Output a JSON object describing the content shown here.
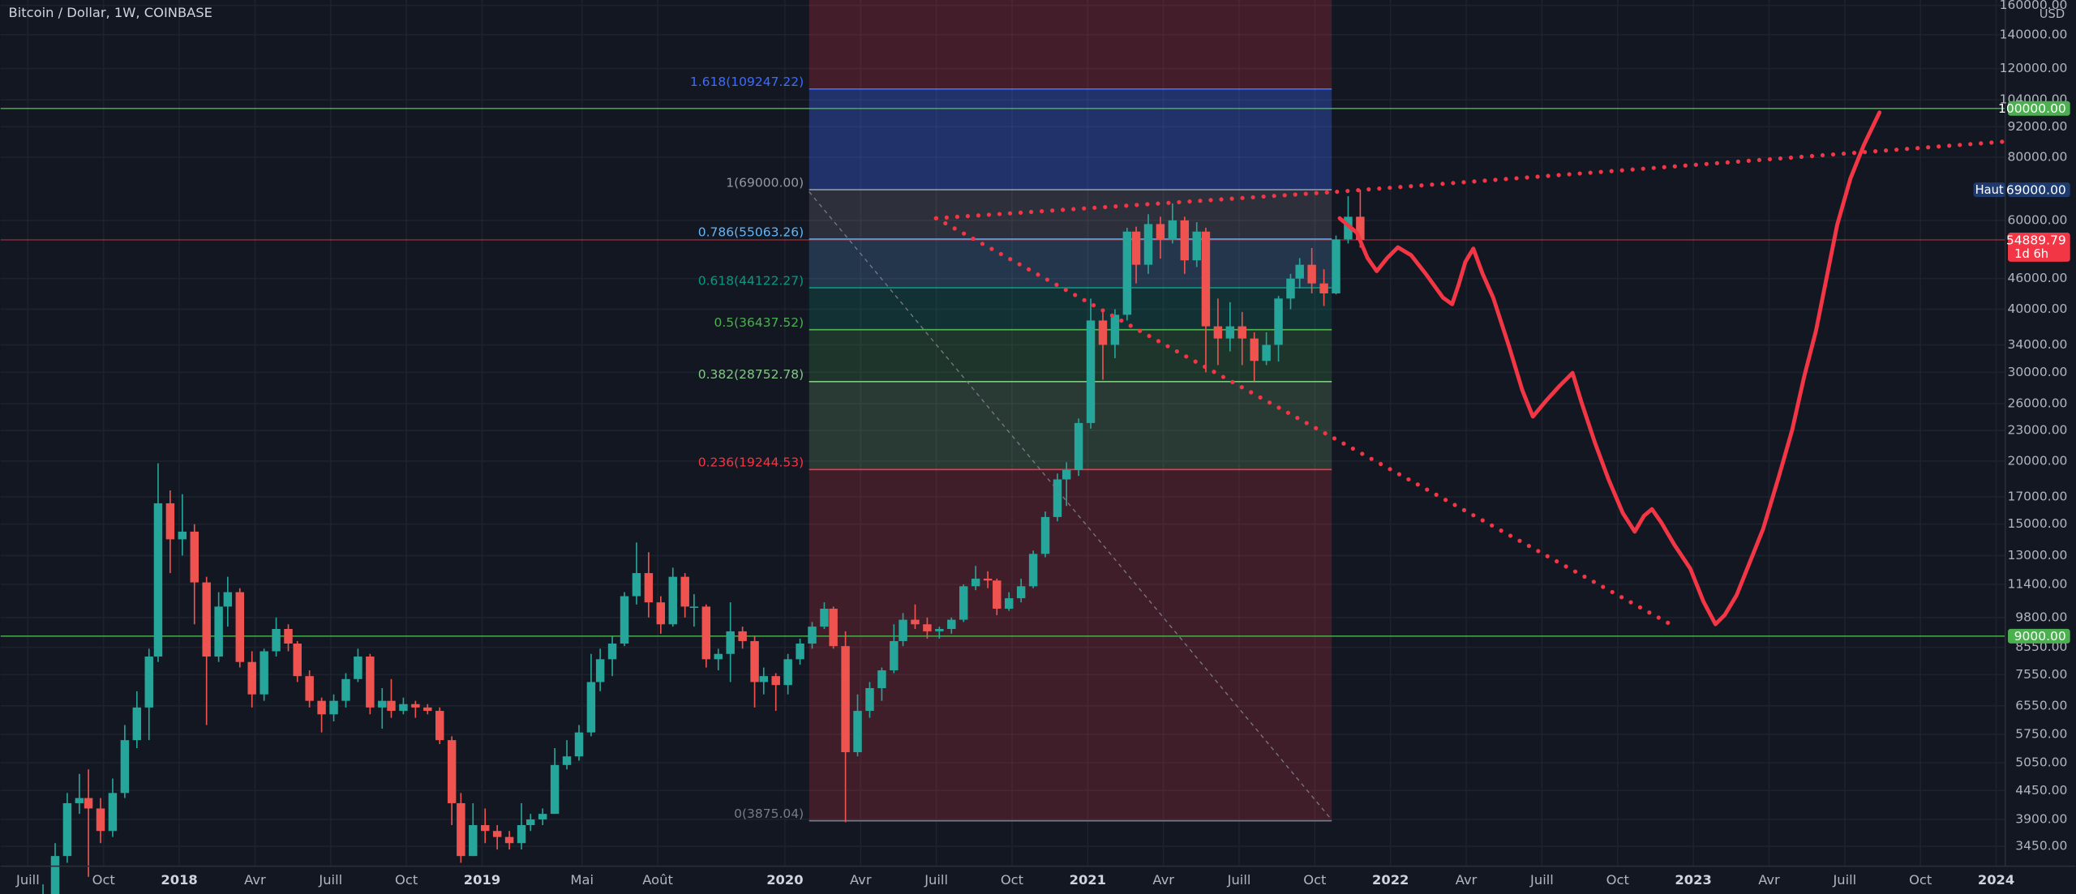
{
  "chart_data": {
    "type": "candlestick",
    "title": "Bitcoin / Dollar, 1W, COINBASE",
    "currency": "USD",
    "log_scale": true,
    "grid": true,
    "up_color": "#26a69a",
    "down_color": "#ef5350",
    "xlim": [
      2017.41,
      2024.03
    ],
    "ylim": [
      3150,
      164000
    ],
    "xticks": [
      {
        "value": 2017.5,
        "label": "Juill"
      },
      {
        "value": 2017.75,
        "label": "Oct"
      },
      2018,
      {
        "value": 2018.25,
        "label": "Avr"
      },
      {
        "value": 2018.5,
        "label": "Juill"
      },
      {
        "value": 2018.75,
        "label": "Oct"
      },
      2019,
      {
        "value": 2019.33,
        "label": "Mai"
      },
      {
        "value": 2019.58,
        "label": "Août"
      },
      2020,
      {
        "value": 2020.25,
        "label": "Avr"
      },
      {
        "value": 2020.5,
        "label": "Juill"
      },
      {
        "value": 2020.75,
        "label": "Oct"
      },
      2021,
      {
        "value": 2021.25,
        "label": "Avr"
      },
      {
        "value": 2021.5,
        "label": "Juill"
      },
      {
        "value": 2021.75,
        "label": "Oct"
      },
      2022,
      {
        "value": 2022.25,
        "label": "Avr"
      },
      {
        "value": 2022.5,
        "label": "Juill"
      },
      {
        "value": 2022.75,
        "label": "Oct"
      },
      2023,
      {
        "value": 2023.25,
        "label": "Avr"
      },
      {
        "value": 2023.5,
        "label": "Juill"
      },
      {
        "value": 2023.75,
        "label": "Oct"
      },
      2024
    ],
    "yticks": [
      {
        "value": 160000,
        "label": "160000.00"
      },
      {
        "value": 140000,
        "label": "140000.00"
      },
      {
        "value": 120000,
        "label": "120000.00"
      },
      {
        "value": 104000,
        "label": "104000.00"
      },
      {
        "value": 92000,
        "label": "92000.00"
      },
      {
        "value": 80000,
        "label": "80000.00"
      },
      {
        "value": 60000,
        "label": "60000.00"
      },
      {
        "value": 46000,
        "label": "46000.00"
      },
      {
        "value": 40000,
        "label": "40000.00"
      },
      {
        "value": 34000,
        "label": "34000.00"
      },
      {
        "value": 30000,
        "label": "30000.00"
      },
      {
        "value": 26000,
        "label": "26000.00"
      },
      {
        "value": 23000,
        "label": "23000.00"
      },
      {
        "value": 20000,
        "label": "20000.00"
      },
      {
        "value": 17000,
        "label": "17000.00"
      },
      {
        "value": 15000,
        "label": "15000.00"
      },
      {
        "value": 13000,
        "label": "13000.00"
      },
      {
        "value": 11400,
        "label": "11400.00"
      },
      {
        "value": 9800,
        "label": "9800.00"
      },
      {
        "value": 8550,
        "label": "8550.00"
      },
      {
        "value": 7550,
        "label": "7550.00"
      },
      {
        "value": 6550,
        "label": "6550.00"
      },
      {
        "value": 5750,
        "label": "5750.00"
      },
      {
        "value": 5050,
        "label": "5050.00"
      },
      {
        "value": 4450,
        "label": "4450.00"
      },
      {
        "value": 3900,
        "label": "3900.00"
      },
      {
        "value": 3450,
        "label": "3450.00"
      }
    ],
    "price_lines": [
      {
        "value": 100000,
        "label": "100000.00",
        "color": "#4caf50"
      },
      {
        "value": 9000,
        "label": "9000.00",
        "color": "#4caf50"
      },
      {
        "value": 69000,
        "label": "69000.00",
        "color": "#1e3a6e",
        "note": "Haut"
      },
      {
        "value": 54889.79,
        "label": "54889.79",
        "color": "#f23645",
        "note": "1d 6h"
      }
    ],
    "fib_levels": [
      {
        "value": 109247.22,
        "label": "1.618(109247.22)",
        "color": "#3d6cff"
      },
      {
        "value": 69000,
        "label": "1(69000.00)",
        "color": "#9598a1"
      },
      {
        "value": 55063.26,
        "label": "0.786(55063.26)",
        "color": "#64b5f6"
      },
      {
        "value": 44122.27,
        "label": "0.618(44122.27)",
        "color": "#089981"
      },
      {
        "value": 36437.52,
        "label": "0.5(36437.52)",
        "color": "#4caf50"
      },
      {
        "value": 28752.78,
        "label": "0.382(28752.78)",
        "color": "#81c784"
      },
      {
        "value": 19244.53,
        "label": "0.236(19244.53)",
        "color": "#f23645"
      },
      {
        "value": 3875.04,
        "label": "0(3875.04)",
        "color": "#787b86"
      }
    ],
    "x": [
      2017.55,
      2017.59,
      2017.63,
      2017.67,
      2017.7,
      2017.74,
      2017.78,
      2017.82,
      2017.86,
      2017.9,
      2017.93,
      2017.97,
      2018.01,
      2018.05,
      2018.09,
      2018.13,
      2018.16,
      2018.2,
      2018.24,
      2018.28,
      2018.32,
      2018.36,
      2018.39,
      2018.43,
      2018.47,
      2018.51,
      2018.55,
      2018.59,
      2018.63,
      2018.67,
      2018.7,
      2018.74,
      2018.78,
      2018.82,
      2018.86,
      2018.9,
      2018.93,
      2018.97,
      2019.01,
      2019.05,
      2019.09,
      2019.13,
      2019.16,
      2019.2,
      2019.24,
      2019.28,
      2019.32,
      2019.36,
      2019.39,
      2019.43,
      2019.47,
      2019.51,
      2019.55,
      2019.59,
      2019.63,
      2019.67,
      2019.7,
      2019.74,
      2019.78,
      2019.82,
      2019.86,
      2019.9,
      2019.93,
      2019.97,
      2020.01,
      2020.05,
      2020.09,
      2020.13,
      2020.16,
      2020.2,
      2020.24,
      2020.28,
      2020.32,
      2020.36,
      2020.39,
      2020.43,
      2020.47,
      2020.51,
      2020.55,
      2020.59,
      2020.63,
      2020.67,
      2020.7,
      2020.74,
      2020.78,
      2020.82,
      2020.86,
      2020.9,
      2020.93,
      2020.97,
      2021.01,
      2021.05,
      2021.09,
      2021.13,
      2021.16,
      2021.2,
      2021.24,
      2021.28,
      2021.32,
      2021.36,
      2021.39,
      2021.43,
      2021.47,
      2021.51,
      2021.55,
      2021.59,
      2021.63,
      2021.67,
      2021.7,
      2021.74,
      2021.78,
      2021.82,
      2021.86,
      2021.9
    ],
    "ohlc": [
      [
        2500,
        2900,
        2400,
        2700
      ],
      [
        2700,
        3500,
        2600,
        3300
      ],
      [
        3300,
        4400,
        3200,
        4200
      ],
      [
        4200,
        4800,
        4000,
        4300
      ],
      [
        4300,
        4900,
        3000,
        4100
      ],
      [
        4100,
        4300,
        3500,
        3700
      ],
      [
        3700,
        4700,
        3600,
        4400
      ],
      [
        4400,
        6000,
        4300,
        5600
      ],
      [
        5600,
        7000,
        5400,
        6500
      ],
      [
        6500,
        8500,
        5600,
        8200
      ],
      [
        8200,
        19800,
        8000,
        16500
      ],
      [
        16500,
        17500,
        12000,
        14000
      ],
      [
        14000,
        17200,
        13000,
        14500
      ],
      [
        14500,
        15000,
        9500,
        11500
      ],
      [
        11500,
        11800,
        6000,
        8200
      ],
      [
        8200,
        11000,
        8000,
        10300
      ],
      [
        10300,
        11800,
        9400,
        11000
      ],
      [
        11000,
        11200,
        7800,
        8000
      ],
      [
        8000,
        8400,
        6500,
        6900
      ],
      [
        6900,
        8500,
        6700,
        8400
      ],
      [
        8400,
        9800,
        8200,
        9300
      ],
      [
        9300,
        9500,
        8400,
        8700
      ],
      [
        8700,
        8800,
        7300,
        7500
      ],
      [
        7500,
        7700,
        6500,
        6700
      ],
      [
        6700,
        6800,
        5800,
        6300
      ],
      [
        6300,
        6900,
        6100,
        6700
      ],
      [
        6700,
        7600,
        6500,
        7400
      ],
      [
        7400,
        8500,
        7300,
        8200
      ],
      [
        8200,
        8300,
        6300,
        6500
      ],
      [
        6500,
        7100,
        5900,
        6700
      ],
      [
        6700,
        7400,
        6200,
        6400
      ],
      [
        6400,
        6800,
        6300,
        6600
      ],
      [
        6600,
        6700,
        6200,
        6500
      ],
      [
        6500,
        6600,
        6300,
        6400
      ],
      [
        6400,
        6500,
        5500,
        5600
      ],
      [
        5600,
        5700,
        3800,
        4200
      ],
      [
        4200,
        4400,
        3200,
        3300
      ],
      [
        3300,
        4200,
        3300,
        3800
      ],
      [
        3800,
        4100,
        3500,
        3700
      ],
      [
        3700,
        3800,
        3400,
        3600
      ],
      [
        3600,
        3700,
        3400,
        3500
      ],
      [
        3500,
        4200,
        3400,
        3800
      ],
      [
        3800,
        4000,
        3700,
        3900
      ],
      [
        3900,
        4100,
        3800,
        4000
      ],
      [
        4000,
        5400,
        4000,
        5000
      ],
      [
        5000,
        5600,
        4900,
        5200
      ],
      [
        5200,
        6000,
        5100,
        5800
      ],
      [
        5800,
        8300,
        5700,
        7300
      ],
      [
        7300,
        8500,
        7000,
        8100
      ],
      [
        8100,
        9000,
        7500,
        8700
      ],
      [
        8700,
        11000,
        8600,
        10800
      ],
      [
        10800,
        13800,
        10400,
        12000
      ],
      [
        12000,
        13200,
        9800,
        10500
      ],
      [
        10500,
        10800,
        9100,
        9500
      ],
      [
        9500,
        12300,
        9400,
        11800
      ],
      [
        11800,
        12000,
        9800,
        10300
      ],
      [
        10300,
        10900,
        9400,
        10300
      ],
      [
        10300,
        10400,
        7800,
        8100
      ],
      [
        8100,
        8500,
        7700,
        8300
      ],
      [
        8300,
        10500,
        7300,
        9200
      ],
      [
        9200,
        9400,
        8500,
        8800
      ],
      [
        8800,
        9000,
        6500,
        7300
      ],
      [
        7300,
        7800,
        6900,
        7500
      ],
      [
        7500,
        7600,
        6400,
        7200
      ],
      [
        7200,
        8300,
        6900,
        8100
      ],
      [
        8100,
        8900,
        7900,
        8700
      ],
      [
        8700,
        9600,
        8500,
        9400
      ],
      [
        9400,
        10500,
        9300,
        10200
      ],
      [
        10200,
        10300,
        8500,
        8600
      ],
      [
        8600,
        9200,
        3850,
        5300
      ],
      [
        5300,
        6900,
        5200,
        6400
      ],
      [
        6400,
        7300,
        6200,
        7100
      ],
      [
        7100,
        7800,
        6700,
        7700
      ],
      [
        7700,
        9500,
        7600,
        8800
      ],
      [
        8800,
        10000,
        8600,
        9700
      ],
      [
        9700,
        10400,
        9300,
        9500
      ],
      [
        9500,
        9800,
        8900,
        9200
      ],
      [
        9200,
        9400,
        8900,
        9300
      ],
      [
        9300,
        9800,
        9100,
        9700
      ],
      [
        9700,
        11400,
        9600,
        11300
      ],
      [
        11300,
        12400,
        11100,
        11700
      ],
      [
        11700,
        12100,
        11200,
        11600
      ],
      [
        11600,
        11700,
        9900,
        10200
      ],
      [
        10200,
        11000,
        10100,
        10700
      ],
      [
        10700,
        11700,
        10500,
        11300
      ],
      [
        11300,
        13300,
        11200,
        13100
      ],
      [
        13100,
        15900,
        12900,
        15500
      ],
      [
        15500,
        18900,
        15200,
        18400
      ],
      [
        18400,
        19900,
        16300,
        19200
      ],
      [
        19200,
        24300,
        18700,
        23800
      ],
      [
        23800,
        42000,
        23200,
        38000
      ],
      [
        38000,
        40000,
        29000,
        34000
      ],
      [
        34000,
        40000,
        32000,
        39000
      ],
      [
        39000,
        58000,
        38000,
        57000
      ],
      [
        57000,
        58300,
        45000,
        49000
      ],
      [
        49000,
        61700,
        47000,
        59000
      ],
      [
        59000,
        61000,
        50400,
        55000
      ],
      [
        55000,
        64800,
        54000,
        60000
      ],
      [
        60000,
        61000,
        47000,
        50000
      ],
      [
        50000,
        59500,
        48500,
        57000
      ],
      [
        57000,
        58000,
        30000,
        37000
      ],
      [
        37000,
        42000,
        31000,
        35000
      ],
      [
        35000,
        41300,
        33000,
        37000
      ],
      [
        37000,
        39500,
        31000,
        35000
      ],
      [
        35000,
        36000,
        28800,
        31600
      ],
      [
        31600,
        36000,
        31000,
        34000
      ],
      [
        34000,
        42500,
        31500,
        42000
      ],
      [
        42000,
        47000,
        40000,
        46000
      ],
      [
        46000,
        50500,
        44000,
        49000
      ],
      [
        49000,
        52900,
        43000,
        45000
      ],
      [
        45000,
        48000,
        40600,
        43000
      ],
      [
        43000,
        56000,
        42800,
        55000
      ],
      [
        55000,
        67000,
        54000,
        61000
      ],
      [
        61000,
        69000,
        53000,
        54889.79
      ]
    ]
  }
}
